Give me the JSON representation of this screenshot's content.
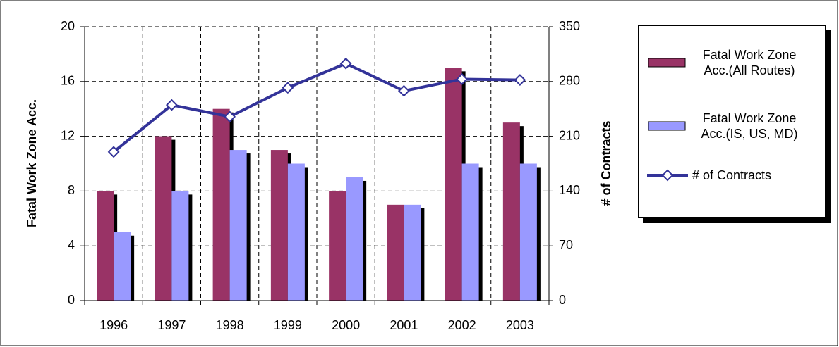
{
  "chart_data": {
    "type": "bar",
    "categories": [
      "1996",
      "1997",
      "1998",
      "1999",
      "2000",
      "2001",
      "2002",
      "2003"
    ],
    "y_label": "Fatal Work Zone Acc.",
    "y2_label": "# of Contracts",
    "ylim": [
      0,
      20
    ],
    "yticks": [
      0,
      4,
      8,
      12,
      16,
      20
    ],
    "y2lim": [
      0,
      350
    ],
    "y2ticks": [
      0,
      70,
      140,
      210,
      280,
      350
    ],
    "grid": true,
    "legend": "right",
    "series": [
      {
        "name": "Fatal Work Zone Acc.(All Routes)",
        "type": "bar",
        "color": "#993366",
        "values": [
          8,
          12,
          14,
          11,
          8,
          7,
          17,
          13
        ]
      },
      {
        "name": "Fatal Work Zone Acc.(IS, US, MD)",
        "type": "bar",
        "color": "#9999ff",
        "values": [
          5,
          8,
          11,
          10,
          9,
          7,
          10,
          10
        ]
      },
      {
        "name": "# of Contracts",
        "type": "line",
        "axis": "y2",
        "color": "#333399",
        "values": [
          190,
          250,
          235,
          272,
          303,
          268,
          283,
          282
        ]
      }
    ]
  }
}
